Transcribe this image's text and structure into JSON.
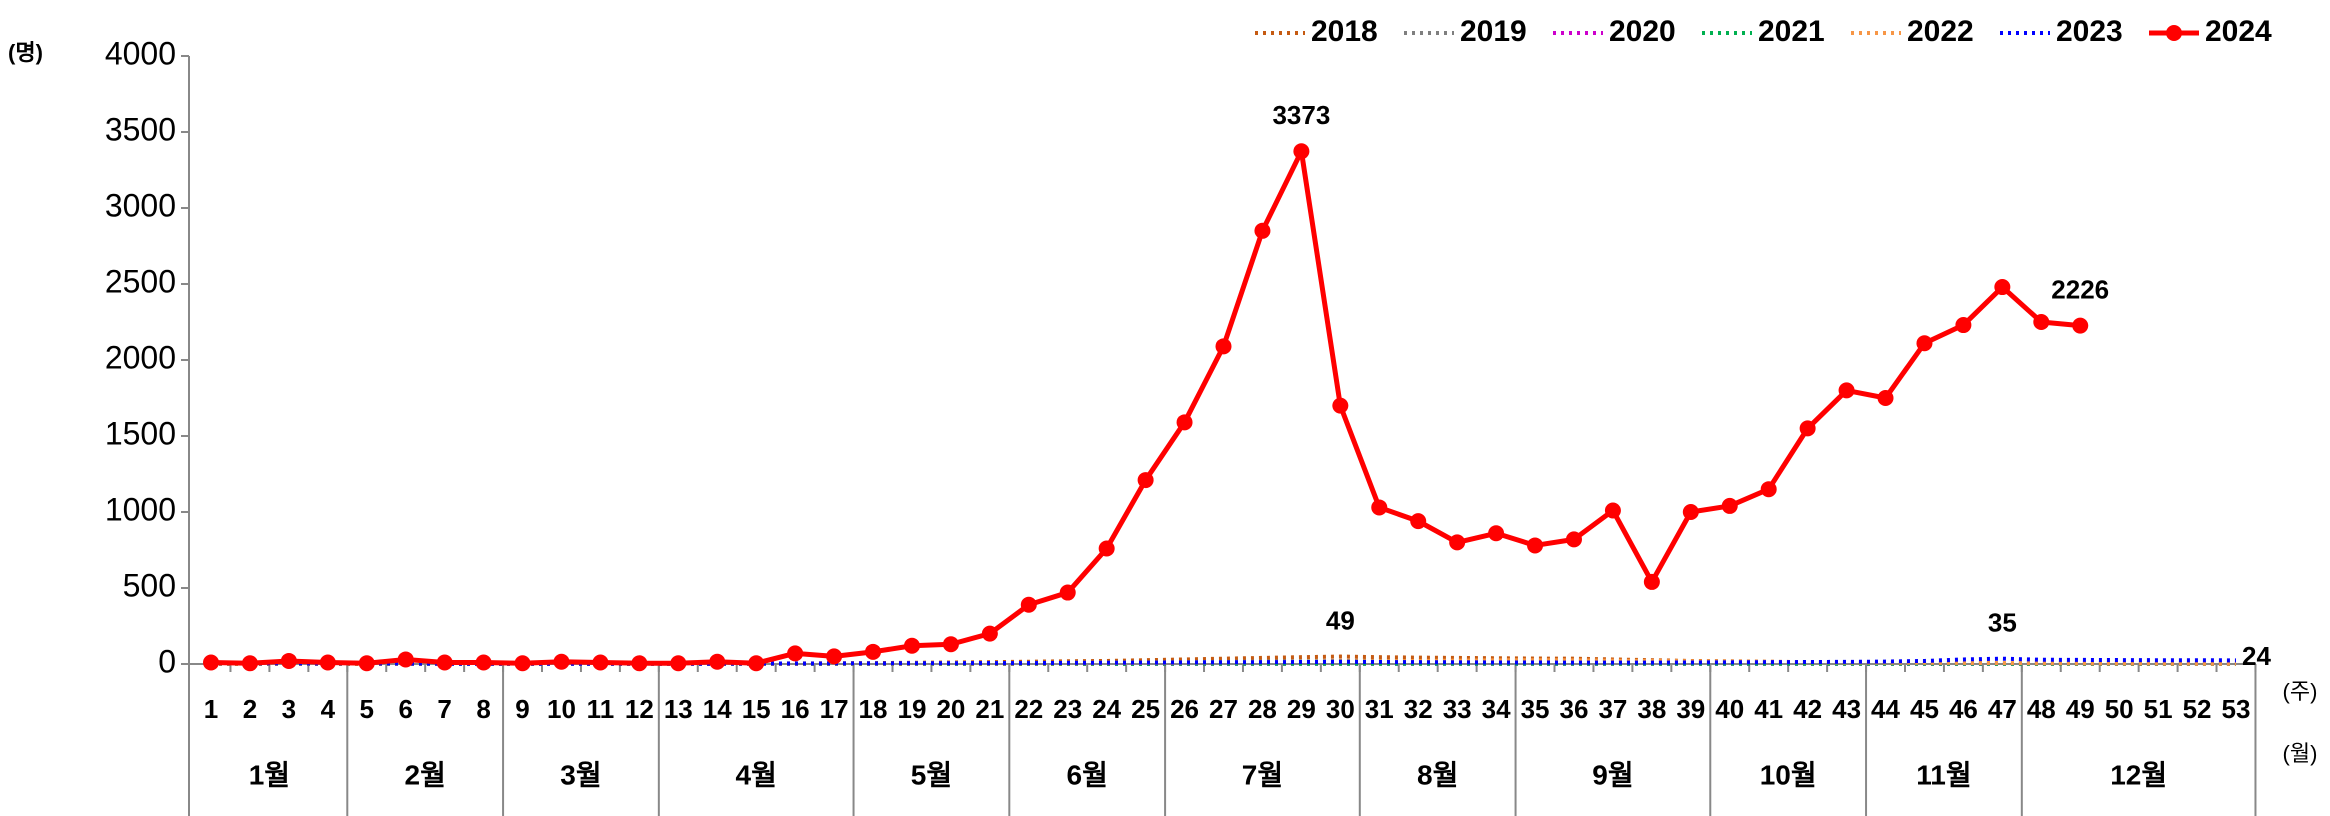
{
  "chart_data": {
    "type": "line",
    "y_label": "(명)",
    "x_label": "(주)",
    "month_label": "(월)",
    "categories": [
      "1",
      "2",
      "3",
      "4",
      "5",
      "6",
      "7",
      "8",
      "9",
      "10",
      "11",
      "12",
      "13",
      "14",
      "15",
      "16",
      "17",
      "18",
      "19",
      "20",
      "21",
      "22",
      "23",
      "24",
      "25",
      "26",
      "27",
      "28",
      "29",
      "30",
      "31",
      "32",
      "33",
      "34",
      "35",
      "36",
      "37",
      "38",
      "39",
      "40",
      "41",
      "42",
      "43",
      "44",
      "45",
      "46",
      "47",
      "48",
      "49",
      "50",
      "51",
      "52",
      "53"
    ],
    "months": [
      {
        "label": "1월",
        "weeks": [
          1,
          4
        ]
      },
      {
        "label": "2월",
        "weeks": [
          5,
          8
        ]
      },
      {
        "label": "3월",
        "weeks": [
          9,
          12
        ]
      },
      {
        "label": "4월",
        "weeks": [
          13,
          17
        ]
      },
      {
        "label": "5월",
        "weeks": [
          18,
          21
        ]
      },
      {
        "label": "6월",
        "weeks": [
          22,
          25
        ]
      },
      {
        "label": "7월",
        "weeks": [
          26,
          30
        ]
      },
      {
        "label": "8월",
        "weeks": [
          31,
          34
        ]
      },
      {
        "label": "9월",
        "weeks": [
          35,
          39
        ]
      },
      {
        "label": "10월",
        "weeks": [
          40,
          43
        ]
      },
      {
        "label": "11월",
        "weeks": [
          44,
          47
        ]
      },
      {
        "label": "12월",
        "weeks": [
          48,
          53
        ]
      }
    ],
    "ylim": [
      0,
      4000
    ],
    "yticks": [
      0,
      500,
      1000,
      1500,
      2000,
      2500,
      3000,
      3500,
      4000
    ],
    "series": [
      {
        "name": "2018",
        "color": "#c55a11",
        "style": "dotted",
        "values": [
          2,
          1,
          2,
          1,
          1,
          2,
          1,
          1,
          1,
          2,
          1,
          1,
          2,
          2,
          3,
          4,
          5,
          6,
          8,
          10,
          12,
          15,
          18,
          20,
          25,
          30,
          35,
          40,
          45,
          49,
          45,
          42,
          40,
          38,
          36,
          35,
          30,
          25,
          20,
          18,
          15,
          12,
          10,
          8,
          6,
          5,
          4,
          3,
          3,
          2,
          2,
          2,
          1
        ],
        "value_labels": [
          null,
          null,
          null,
          null,
          null,
          null,
          null,
          null,
          null,
          null,
          null,
          null,
          null,
          null,
          null,
          null,
          null,
          null,
          null,
          null,
          null,
          null,
          null,
          null,
          null,
          null,
          null,
          null,
          null,
          "49",
          null,
          null,
          null,
          null,
          null,
          null,
          null,
          null,
          null,
          null,
          null,
          null,
          null,
          null,
          null,
          null,
          null,
          null,
          null,
          null,
          null,
          null,
          null
        ]
      },
      {
        "name": "2019",
        "color": "#7f7f7f",
        "style": "dotted",
        "values": [
          1,
          1,
          1,
          1,
          1,
          1,
          1,
          1,
          1,
          1,
          1,
          1,
          1,
          2,
          2,
          2,
          3,
          3,
          4,
          5,
          6,
          7,
          8,
          9,
          10,
          12,
          14,
          16,
          18,
          20,
          20,
          19,
          18,
          17,
          15,
          14,
          12,
          10,
          9,
          8,
          7,
          6,
          5,
          4,
          4,
          3,
          3,
          2,
          2,
          2,
          1,
          1,
          1
        ]
      },
      {
        "name": "2020",
        "color": "#cc00cc",
        "style": "dotted",
        "values": [
          1,
          1,
          1,
          1,
          1,
          1,
          1,
          1,
          1,
          1,
          0,
          0,
          0,
          0,
          0,
          0,
          0,
          0,
          0,
          0,
          0,
          0,
          0,
          0,
          1,
          1,
          1,
          1,
          1,
          1,
          1,
          1,
          1,
          1,
          1,
          1,
          1,
          1,
          1,
          1,
          1,
          1,
          1,
          1,
          1,
          1,
          1,
          1,
          1,
          1,
          1,
          1,
          1
        ]
      },
      {
        "name": "2021",
        "color": "#00b050",
        "style": "dotted",
        "values": [
          0,
          0,
          0,
          0,
          0,
          0,
          0,
          0,
          0,
          0,
          0,
          0,
          0,
          0,
          0,
          0,
          0,
          0,
          0,
          0,
          1,
          1,
          1,
          1,
          1,
          2,
          2,
          2,
          2,
          2,
          2,
          2,
          2,
          2,
          2,
          2,
          2,
          2,
          2,
          2,
          2,
          2,
          2,
          2,
          2,
          2,
          1,
          1,
          1,
          1,
          1,
          1,
          1
        ]
      },
      {
        "name": "2022",
        "color": "#f79646",
        "style": "dotted",
        "values": [
          1,
          1,
          1,
          1,
          1,
          1,
          1,
          1,
          1,
          1,
          1,
          1,
          1,
          1,
          1,
          1,
          2,
          2,
          2,
          3,
          3,
          4,
          5,
          6,
          7,
          8,
          10,
          12,
          14,
          16,
          18,
          20,
          22,
          24,
          25,
          24,
          22,
          20,
          18,
          16,
          14,
          12,
          10,
          9,
          8,
          7,
          6,
          5,
          4,
          3,
          3,
          2,
          2
        ]
      },
      {
        "name": "2023",
        "color": "#0000ff",
        "style": "dotted",
        "values": [
          5,
          4,
          4,
          3,
          3,
          3,
          2,
          2,
          2,
          2,
          2,
          2,
          2,
          2,
          3,
          3,
          4,
          4,
          5,
          5,
          6,
          6,
          7,
          8,
          9,
          10,
          11,
          12,
          13,
          14,
          13,
          12,
          11,
          10,
          10,
          9,
          9,
          9,
          10,
          11,
          12,
          13,
          14,
          16,
          20,
          30,
          35,
          28,
          27,
          26,
          25,
          25,
          24
        ],
        "value_labels": [
          null,
          null,
          null,
          null,
          null,
          null,
          null,
          null,
          null,
          null,
          null,
          null,
          null,
          null,
          null,
          null,
          null,
          null,
          null,
          null,
          null,
          null,
          null,
          null,
          null,
          null,
          null,
          null,
          null,
          null,
          null,
          null,
          null,
          null,
          null,
          null,
          null,
          null,
          null,
          null,
          null,
          null,
          null,
          null,
          null,
          null,
          "35",
          null,
          null,
          null,
          null,
          null,
          "24"
        ]
      },
      {
        "name": "2024",
        "color": "#ff0000",
        "style": "marker",
        "values": [
          10,
          5,
          20,
          10,
          5,
          30,
          10,
          10,
          5,
          15,
          10,
          5,
          5,
          15,
          5,
          70,
          50,
          80,
          120,
          130,
          200,
          390,
          470,
          760,
          1210,
          1590,
          2090,
          2850,
          3373,
          1700,
          1030,
          940,
          800,
          860,
          780,
          820,
          1010,
          540,
          1000,
          1040,
          1150,
          1550,
          1800,
          1750,
          2110,
          2230,
          2480,
          2250,
          2226,
          null,
          null,
          null,
          null
        ],
        "value_labels": [
          null,
          null,
          null,
          null,
          null,
          null,
          null,
          null,
          null,
          null,
          null,
          null,
          null,
          null,
          null,
          null,
          null,
          null,
          null,
          null,
          null,
          null,
          null,
          null,
          null,
          null,
          null,
          null,
          "3373",
          null,
          null,
          null,
          null,
          null,
          null,
          null,
          null,
          null,
          null,
          null,
          null,
          null,
          null,
          null,
          null,
          null,
          null,
          null,
          "2226",
          null,
          null,
          null,
          null
        ]
      }
    ]
  }
}
